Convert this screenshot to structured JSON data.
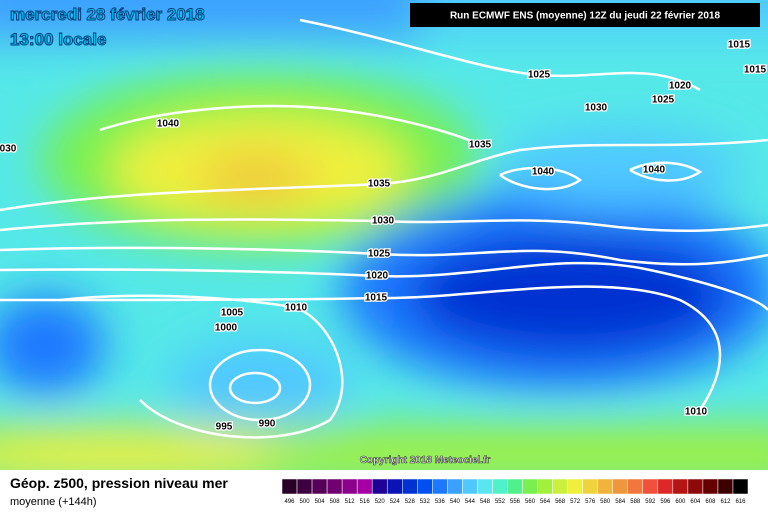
{
  "header": {
    "date": "mercredi 28 février 2018",
    "time": "13:00 locale",
    "run": "Run ECMWF ENS (moyenne) 12Z du jeudi 22 février 2018"
  },
  "isobars": [
    "1040",
    "1035",
    "1035",
    "1030",
    "1025",
    "1020",
    "1015",
    "1010",
    "1005",
    "1000",
    "995",
    "990",
    "1025",
    "1030",
    "1020",
    "1025",
    "1015",
    "1015",
    "1040",
    "1040",
    "1010",
    "030"
  ],
  "copyright": "Copyright 2018 Meteociel.fr",
  "legend": {
    "title": "Géop. z500, pression niveau mer",
    "subtitle": "moyenne  (+144h)",
    "scale": [
      {
        "label": "496",
        "color": "#2a0028"
      },
      {
        "label": "500",
        "color": "#3c0040"
      },
      {
        "label": "504",
        "color": "#560058"
      },
      {
        "label": "508",
        "color": "#700070"
      },
      {
        "label": "512",
        "color": "#8a008a"
      },
      {
        "label": "516",
        "color": "#a400a4"
      },
      {
        "label": "520",
        "color": "#1e0096"
      },
      {
        "label": "524",
        "color": "#0a14b4"
      },
      {
        "label": "528",
        "color": "#0032d2"
      },
      {
        "label": "532",
        "color": "#0050f0"
      },
      {
        "label": "536",
        "color": "#1e78ff"
      },
      {
        "label": "540",
        "color": "#3ca0ff"
      },
      {
        "label": "544",
        "color": "#50c8ff"
      },
      {
        "label": "548",
        "color": "#5ae6f0"
      },
      {
        "label": "552",
        "color": "#50f0c8"
      },
      {
        "label": "556",
        "color": "#50f08c"
      },
      {
        "label": "560",
        "color": "#78f050"
      },
      {
        "label": "564",
        "color": "#a0f03c"
      },
      {
        "label": "568",
        "color": "#c8f03c"
      },
      {
        "label": "572",
        "color": "#f0f03c"
      },
      {
        "label": "576",
        "color": "#f0d23c"
      },
      {
        "label": "580",
        "color": "#f0b43c"
      },
      {
        "label": "584",
        "color": "#f0963c"
      },
      {
        "label": "588",
        "color": "#f0783c"
      },
      {
        "label": "592",
        "color": "#f0503c"
      },
      {
        "label": "596",
        "color": "#dc2828"
      },
      {
        "label": "600",
        "color": "#b41414"
      },
      {
        "label": "604",
        "color": "#8c0a0a"
      },
      {
        "label": "608",
        "color": "#640000"
      },
      {
        "label": "612",
        "color": "#3c0000"
      },
      {
        "label": "616",
        "color": "#000000"
      }
    ]
  }
}
